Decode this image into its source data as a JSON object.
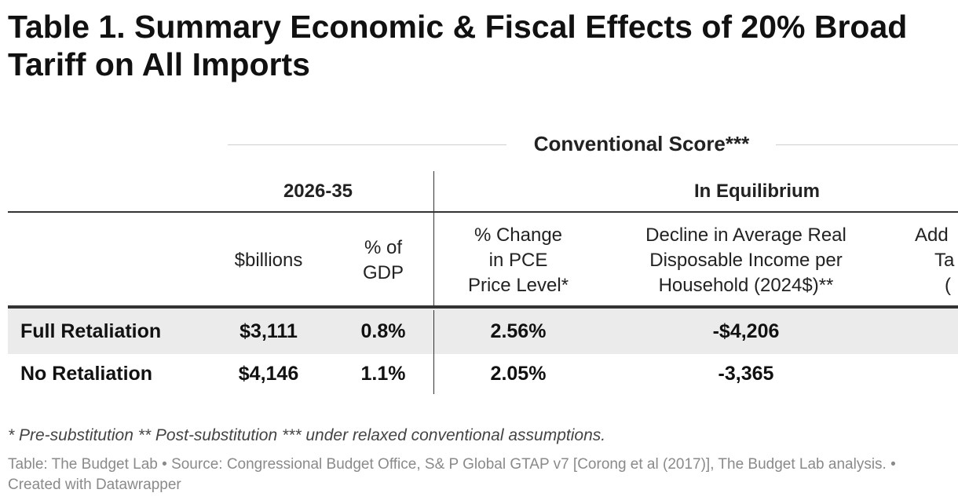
{
  "title": "Table 1. Summary Economic & Fiscal Effects of 20% Broad Tariff on All Imports",
  "header": {
    "conventional_score": "Conventional Score***",
    "group_2026_35": "2026-35",
    "group_equilibrium": "In Equilibrium"
  },
  "columns": {
    "billions": "$billions",
    "pct_gdp_1": "% of",
    "pct_gdp_2": "GDP",
    "pce_1": "% Change",
    "pce_2": "in PCE",
    "pce_3": "Price Level*",
    "income_1": "Decline in Average Real",
    "income_2": "Disposable Income per",
    "income_3": "Household (2024$)**",
    "extra_1": "Add",
    "extra_2": "Ta",
    "extra_3": "("
  },
  "rows": [
    {
      "label": "Full Retaliation",
      "billions": "$3,111",
      "pct_gdp": "0.8%",
      "pce": "2.56%",
      "income": "-$4,206"
    },
    {
      "label": "No Retaliation",
      "billions": "$4,146",
      "pct_gdp": "1.1%",
      "pce": "2.05%",
      "income": "-3,365"
    }
  ],
  "footnote": "* Pre-substitution ** Post-substitution *** under relaxed conventional assumptions.",
  "source": "Table: The Budget Lab • Source: Congressional Budget Office,  S& P Global GTAP v7 [Corong et al (2017)], The Budget Lab analysis. • Created with Datawrapper",
  "colors": {
    "row_shade": "#ebebeb",
    "rule": "#333333",
    "light_rule": "#cfcfcf",
    "source_text": "#8a8a8a"
  }
}
